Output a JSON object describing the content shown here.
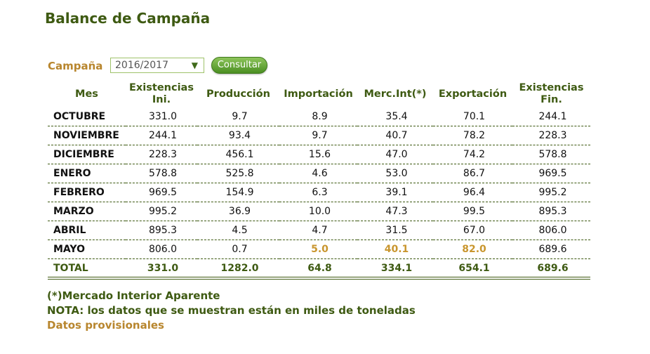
{
  "page": {
    "title": "Balance de Campaña"
  },
  "filter": {
    "label": "Campaña",
    "selected": "2016/2017",
    "arrow_icon": "triangle-down-icon",
    "button_label": "Consultar"
  },
  "table": {
    "headers": [
      "Mes",
      "Existencias Ini.",
      "Producción",
      "Importación",
      "Merc.Int(*)",
      "Exportación",
      "Existencias Fin."
    ],
    "rows": [
      {
        "mes": "OCTUBRE",
        "ini": "331.0",
        "prod": "9.7",
        "imp": "8.9",
        "merc": "35.4",
        "exp": "70.1",
        "fin": "244.1"
      },
      {
        "mes": "NOVIEMBRE",
        "ini": "244.1",
        "prod": "93.4",
        "imp": "9.7",
        "merc": "40.7",
        "exp": "78.2",
        "fin": "228.3"
      },
      {
        "mes": "DICIEMBRE",
        "ini": "228.3",
        "prod": "456.1",
        "imp": "15.6",
        "merc": "47.0",
        "exp": "74.2",
        "fin": "578.8"
      },
      {
        "mes": "ENERO",
        "ini": "578.8",
        "prod": "525.8",
        "imp": "4.6",
        "merc": "53.0",
        "exp": "86.7",
        "fin": "969.5"
      },
      {
        "mes": "FEBRERO",
        "ini": "969.5",
        "prod": "154.9",
        "imp": "6.3",
        "merc": "39.1",
        "exp": "96.4",
        "fin": "995.2"
      },
      {
        "mes": "MARZO",
        "ini": "995.2",
        "prod": "36.9",
        "imp": "10.0",
        "merc": "47.3",
        "exp": "99.5",
        "fin": "895.3"
      },
      {
        "mes": "ABRIL",
        "ini": "895.3",
        "prod": "4.5",
        "imp": "4.7",
        "merc": "31.5",
        "exp": "67.0",
        "fin": "806.0"
      },
      {
        "mes": "MAYO",
        "ini": "806.0",
        "prod": "0.7",
        "imp": "5.0",
        "merc": "40.1",
        "exp": "82.0",
        "fin": "689.6"
      }
    ],
    "total": {
      "mes": "TOTAL",
      "ini": "331.0",
      "prod": "1282.0",
      "imp": "64.8",
      "merc": "334.1",
      "exp": "654.1",
      "fin": "689.6"
    }
  },
  "footnotes": {
    "mercado": "(*)Mercado Interior Aparente",
    "nota": "NOTA: los datos que se muestran están en miles de toneladas",
    "provisional": "Datos provisionales"
  },
  "colors": {
    "title_green": "#3e5a12",
    "gold": "#b8862e",
    "highlight": "#c9962e",
    "button_green": "#4b8f22"
  }
}
